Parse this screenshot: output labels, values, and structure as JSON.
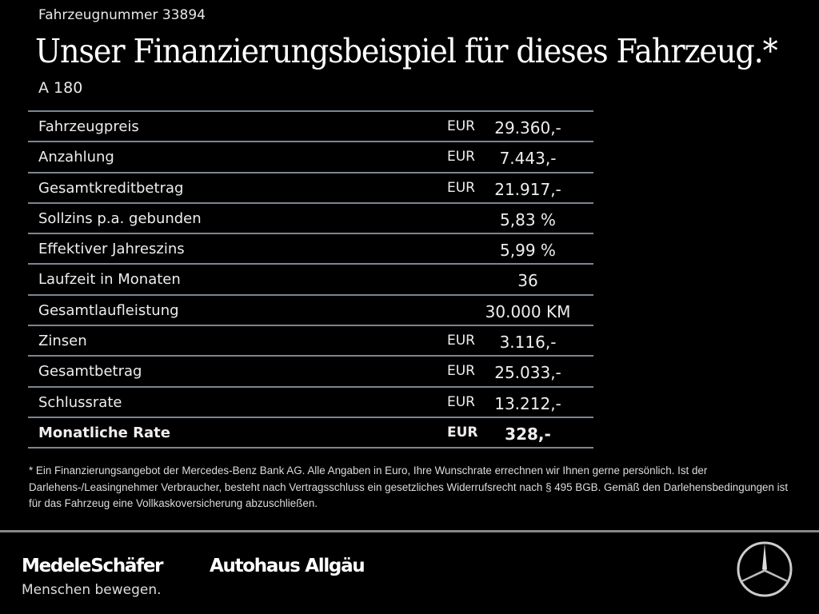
{
  "vehicle_number": "Fahrzeugnummer 33894",
  "title": "Unser Finanzierungsbeispiel für dieses Fahrzeug.*",
  "model": "A 180",
  "rows": [
    {
      "label": "Fahrzeugpreis",
      "currency": "EUR",
      "value": "29.360,-"
    },
    {
      "label": "Anzahlung",
      "currency": "EUR",
      "value": "7.443,-"
    },
    {
      "label": "Gesamtkreditbetrag",
      "currency": "EUR",
      "value": "21.917,-"
    },
    {
      "label": "Sollzins p.a. gebunden",
      "currency": "",
      "value": "5,83 %"
    },
    {
      "label": "Effektiver Jahreszins",
      "currency": "",
      "value": "5,99 %"
    },
    {
      "label": "Laufzeit in Monaten",
      "currency": "",
      "value": "36"
    },
    {
      "label": "Gesamtlaufleistung",
      "currency": "",
      "value": "30.000 KM"
    },
    {
      "label": "Zinsen",
      "currency": "EUR",
      "value": "3.116,-"
    },
    {
      "label": "Gesamtbetrag",
      "currency": "EUR",
      "value": "25.033,-"
    },
    {
      "label": "Schlussrate",
      "currency": "EUR",
      "value": "13.212,-"
    },
    {
      "label": "Monatliche Rate",
      "currency": "EUR",
      "value": "328,-"
    }
  ],
  "footnote": "* Ein Finanzierungsangebot der Mercedes-Benz Bank AG. Alle Angaben in Euro, Ihre Wunschrate errechnen wir Ihnen gerne persönlich. Ist der Darlehens-/Leasingnehmer Verbraucher, besteht nach Vertragsschluss ein gesetzliches Widerrufsrecht nach § 495 BGB. Gemäß den Darlehensbedingungen ist für das Fahrzeug eine Vollkaskoversicherung abzuschließen.",
  "footer": {
    "brand1": "MedeleSchäfer",
    "brand2": "Autohaus Allgäu",
    "slogan": "Menschen bewegen.",
    "logo_icon": "mercedes-star-icon"
  },
  "colors": {
    "background": "#000000",
    "divider": "#7d8590"
  }
}
